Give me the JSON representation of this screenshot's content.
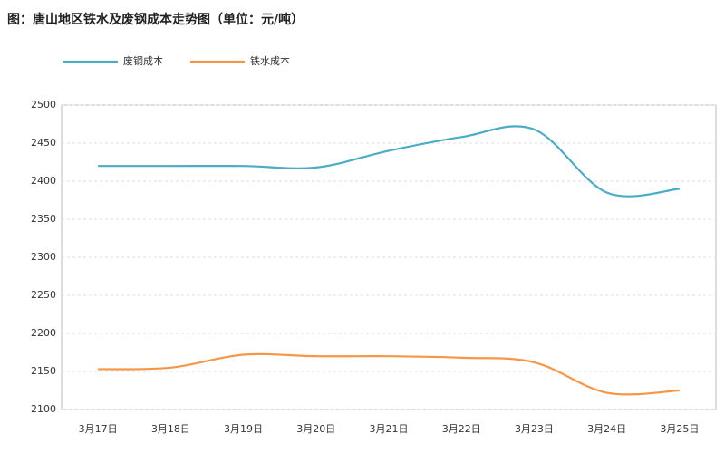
{
  "chart_data": {
    "type": "line",
    "title": "图：唐山地区铁水及废钢成本走势图（单位：元/吨）",
    "categories": [
      "3月17日",
      "3月18日",
      "3月19日",
      "3月20日",
      "3月21日",
      "3月22日",
      "3月23日",
      "3月24日",
      "3月25日"
    ],
    "series": [
      {
        "name": "废钢成本",
        "color": "#4bacc6",
        "values": [
          2420,
          2420,
          2420,
          2418,
          2440,
          2458,
          2468,
          2385,
          2390
        ]
      },
      {
        "name": "铁水成本",
        "color": "#f79646",
        "values": [
          2153,
          2155,
          2172,
          2170,
          2170,
          2168,
          2162,
          2122,
          2125
        ]
      }
    ],
    "ylim": [
      2100,
      2500
    ],
    "yticks": [
      2100,
      2150,
      2200,
      2250,
      2300,
      2350,
      2400,
      2450,
      2500
    ],
    "grid": true
  }
}
